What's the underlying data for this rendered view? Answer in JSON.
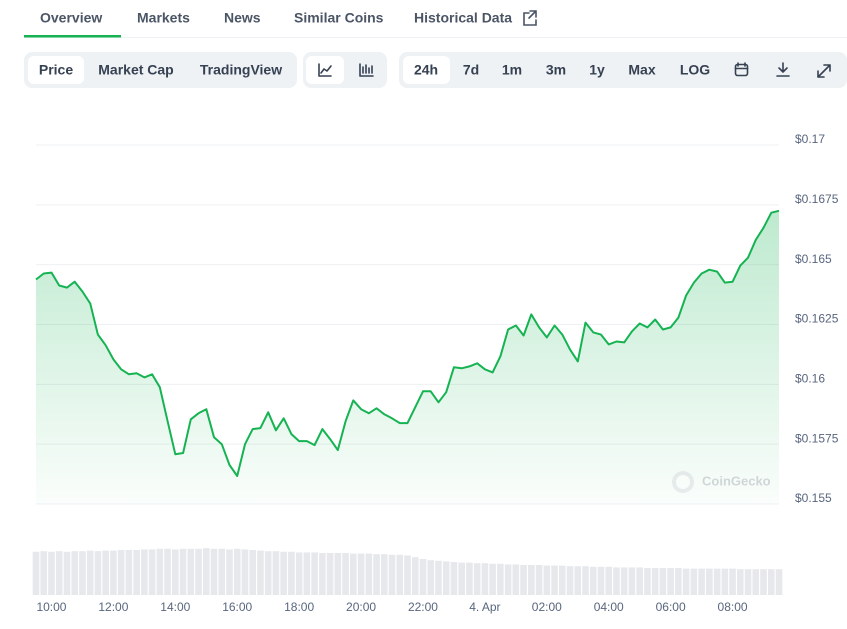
{
  "tabs": [
    "Overview",
    "Markets",
    "News",
    "Similar Coins",
    "Historical Data"
  ],
  "active_tab": 0,
  "chart_tabs": [
    "Price",
    "Market Cap",
    "TradingView"
  ],
  "active_chart_tab": 0,
  "range_buttons": [
    "24h",
    "7d",
    "1m",
    "3m",
    "1y",
    "Max",
    "LOG"
  ],
  "active_range": 0,
  "watermark": "CoinGecko",
  "chart_data": {
    "type": "area",
    "color": "#16b353",
    "values": [
      0.16438,
      0.16463,
      0.16467,
      0.16413,
      0.16404,
      0.16429,
      0.16388,
      0.16338,
      0.16208,
      0.16163,
      0.16104,
      0.16063,
      0.16042,
      0.16046,
      0.16029,
      0.16042,
      0.15988,
      0.15846,
      0.15708,
      0.15713,
      0.15854,
      0.15879,
      0.15896,
      0.15779,
      0.1575,
      0.15663,
      0.15617,
      0.1575,
      0.15813,
      0.15817,
      0.15883,
      0.15808,
      0.15858,
      0.15792,
      0.15763,
      0.15763,
      0.15746,
      0.15813,
      0.15771,
      0.15725,
      0.15846,
      0.15933,
      0.15896,
      0.15879,
      0.159,
      0.15875,
      0.15858,
      0.15838,
      0.15838,
      0.15904,
      0.15971,
      0.15971,
      0.15925,
      0.15967,
      0.16071,
      0.16067,
      0.16075,
      0.16088,
      0.16063,
      0.1605,
      0.16117,
      0.16229,
      0.16246,
      0.16204,
      0.16292,
      0.16238,
      0.16196,
      0.16246,
      0.16208,
      0.16146,
      0.16096,
      0.16258,
      0.16217,
      0.16208,
      0.16167,
      0.16179,
      0.16175,
      0.16221,
      0.16254,
      0.16238,
      0.16271,
      0.16229,
      0.16238,
      0.16279,
      0.16371,
      0.16425,
      0.16463,
      0.16479,
      0.16471,
      0.16425,
      0.16429,
      0.16496,
      0.16529,
      0.16604,
      0.16654,
      0.16717,
      0.16725
    ],
    "volume": [
      72,
      73,
      72,
      73,
      72,
      73,
      73,
      74,
      73,
      74,
      74,
      75,
      75,
      75,
      76,
      76,
      77,
      77,
      76,
      77,
      77,
      77,
      78,
      77,
      77,
      76,
      77,
      76,
      75,
      74,
      73,
      73,
      72,
      72,
      71,
      71,
      71,
      70,
      70,
      70,
      70,
      69,
      69,
      69,
      68,
      68,
      67,
      67,
      66,
      63,
      60,
      58,
      57,
      56,
      55,
      54,
      54,
      53,
      53,
      52,
      52,
      51,
      51,
      50,
      50,
      50,
      49,
      49,
      49,
      48,
      48,
      48,
      47,
      47,
      47,
      46,
      46,
      46,
      46,
      45,
      45,
      45,
      45,
      45,
      44,
      44,
      44,
      44,
      44,
      44,
      44,
      43,
      43,
      43,
      43,
      43,
      43
    ],
    "volume_lim": [
      0,
      100
    ],
    "volume_color": "#e6e8ec",
    "xlim": [
      0,
      96
    ],
    "xticks": [
      {
        "value": 2,
        "label": "10:00"
      },
      {
        "value": 10,
        "label": "12:00"
      },
      {
        "value": 18,
        "label": "14:00"
      },
      {
        "value": 26,
        "label": "16:00"
      },
      {
        "value": 34,
        "label": "18:00"
      },
      {
        "value": 42,
        "label": "20:00"
      },
      {
        "value": 50,
        "label": "22:00"
      },
      {
        "value": 58,
        "label": "4. Apr"
      },
      {
        "value": 66,
        "label": "02:00"
      },
      {
        "value": 74,
        "label": "04:00"
      },
      {
        "value": 82,
        "label": "06:00"
      },
      {
        "value": 90,
        "label": "08:00"
      }
    ],
    "ylim": [
      0.155,
      0.17
    ],
    "yticks": [
      {
        "value": 0.155,
        "label": "$0.155"
      },
      {
        "value": 0.1575,
        "label": "$0.1575"
      },
      {
        "value": 0.16,
        "label": "$0.16"
      },
      {
        "value": 0.1625,
        "label": "$0.1625"
      },
      {
        "value": 0.165,
        "label": "$0.165"
      },
      {
        "value": 0.1675,
        "label": "$0.1675"
      },
      {
        "value": 0.17,
        "label": "$0.17"
      }
    ],
    "grid": true
  }
}
